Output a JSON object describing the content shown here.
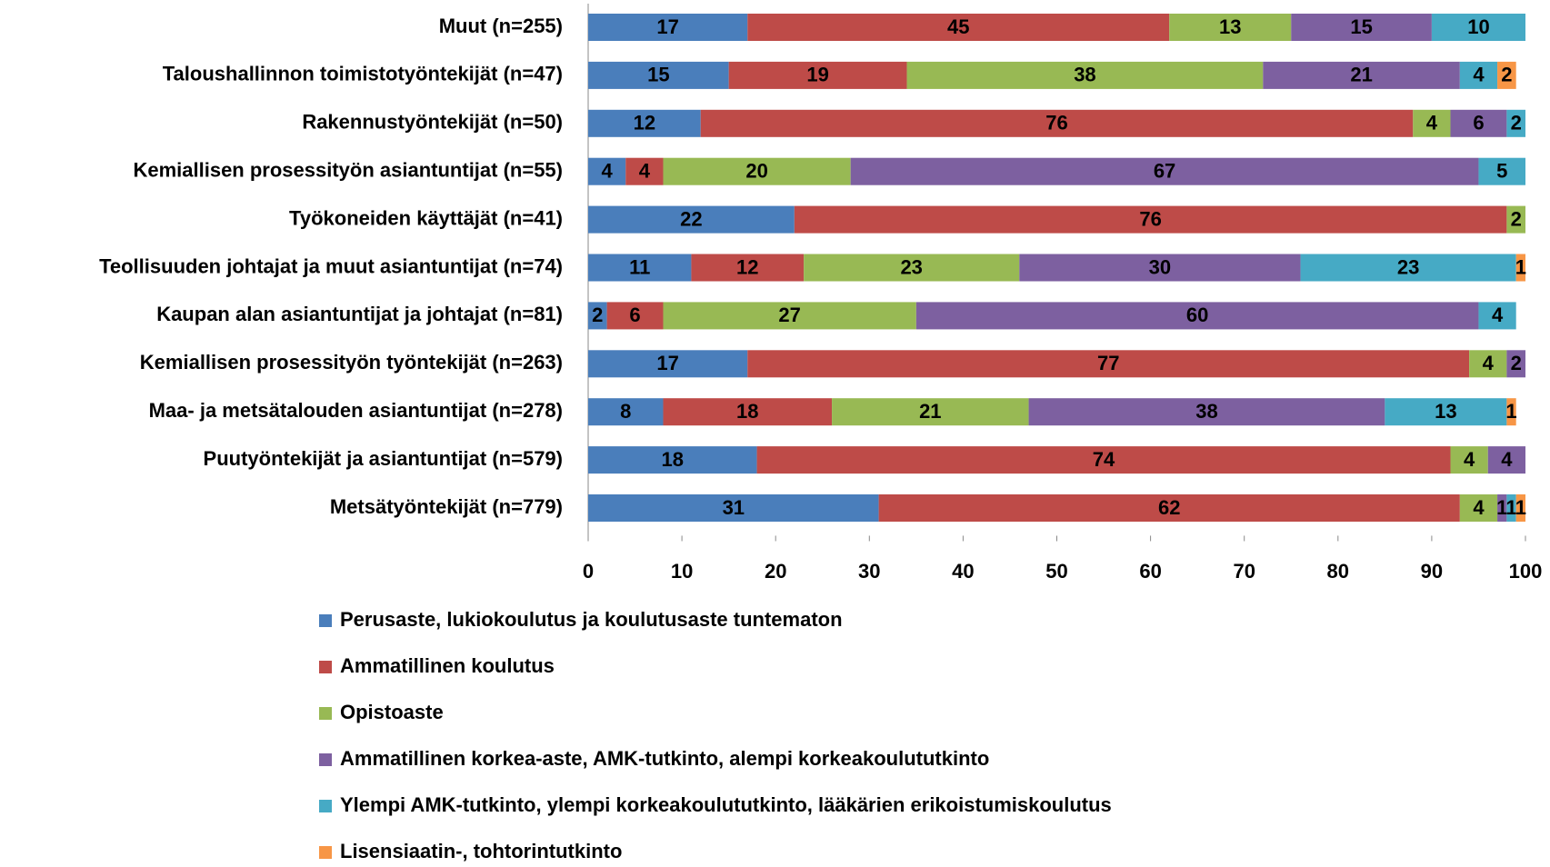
{
  "chart_data": {
    "type": "stacked-bar-horizontal",
    "categories": [
      "Muut (n=255)",
      "Taloushallinnon toimistotyöntekijät (n=47)",
      "Rakennustyöntekijät (n=50)",
      "Kemiallisen prosessityön asiantuntijat (n=55)",
      "Työkoneiden käyttäjät (n=41)",
      "Teollisuuden johtajat ja muut asiantuntijat (n=74)",
      "Kaupan alan asiantuntijat ja johtajat (n=81)",
      "Kemiallisen prosessityön työntekijät (n=263)",
      "Maa- ja metsätalouden asiantuntijat (n=278)",
      "Puutyöntekijät ja asiantuntijat (n=579)",
      "Metsätyöntekijät (n=779)"
    ],
    "series": [
      {
        "name": "Perusaste, lukiokoulutus ja koulutusaste tuntematon",
        "color": "#4a7ebb",
        "values": [
          17,
          15,
          12,
          4,
          22,
          11,
          2,
          17,
          8,
          18,
          31
        ]
      },
      {
        "name": "Ammatillinen koulutus",
        "color": "#be4b48",
        "values": [
          45,
          19,
          76,
          4,
          76,
          12,
          6,
          77,
          18,
          74,
          62
        ]
      },
      {
        "name": "Opistoaste",
        "color": "#98b954",
        "values": [
          13,
          38,
          4,
          20,
          2,
          23,
          27,
          4,
          21,
          4,
          4
        ]
      },
      {
        "name": "Ammatillinen korkea-aste, AMK-tutkinto, alempi korkeakoulututkinto",
        "color": "#7d60a0",
        "values": [
          15,
          21,
          6,
          67,
          null,
          30,
          60,
          2,
          38,
          4,
          1
        ]
      },
      {
        "name": "Ylempi AMK-tutkinto, ylempi korkeakoulututkinto, lääkärien erikoistumiskoulutus",
        "color": "#46aac5",
        "values": [
          10,
          4,
          2,
          5,
          null,
          23,
          4,
          null,
          13,
          null,
          1
        ]
      },
      {
        "name": "Lisensiaatin-, tohtorintutkinto",
        "color": "#f79646",
        "values": [
          null,
          2,
          null,
          null,
          null,
          1,
          null,
          null,
          1,
          null,
          1
        ]
      }
    ],
    "xlim": [
      0,
      100
    ],
    "xticks": [
      0,
      10,
      20,
      30,
      40,
      50,
      60,
      70,
      80,
      90,
      100
    ],
    "legend": "bottom"
  }
}
